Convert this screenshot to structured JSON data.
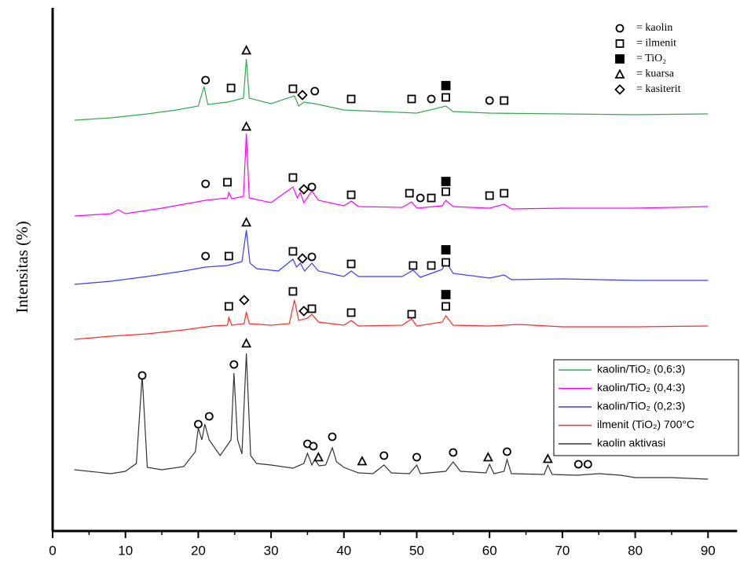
{
  "chart_data": {
    "type": "line",
    "y_label": "Intensitas (%)",
    "xlim": [
      0,
      94
    ],
    "xticks": [
      0,
      10,
      20,
      30,
      40,
      50,
      60,
      70,
      80,
      90
    ],
    "ylim": [
      0,
      666
    ],
    "series": [
      {
        "name": "kaolin/TiO₂ (0,6:3)",
        "color": "#33a852",
        "x": [
          3,
          8,
          13,
          17,
          20,
          20.8,
          21.3,
          24,
          26.2,
          26.6,
          27,
          30,
          33.2,
          33.8,
          34.5,
          36,
          40,
          45,
          50,
          54,
          55,
          60,
          70,
          80,
          90
        ],
        "values": [
          523,
          526,
          531,
          536,
          541,
          566,
          543,
          546,
          551,
          601,
          551,
          544,
          554,
          541,
          546,
          544,
          536,
          534,
          532,
          541,
          534,
          532,
          531,
          530,
          531
        ]
      },
      {
        "name": "kaolin/TiO₂ (0,4:3)",
        "color": "#ff00ff",
        "x": [
          3,
          8,
          9,
          10,
          15,
          18,
          21,
          24,
          24.2,
          24.6,
          26.2,
          26.6,
          27,
          30,
          33,
          33.6,
          34,
          34.5,
          35.6,
          36.5,
          40,
          41,
          42,
          48,
          49.3,
          50,
          53.5,
          54,
          55,
          60,
          62,
          63,
          70,
          80,
          90
        ],
        "values": [
          401,
          404,
          409,
          404,
          411,
          416,
          421,
          424,
          431,
          423,
          426,
          506,
          424,
          418,
          438,
          424,
          431,
          418,
          433,
          421,
          414,
          420,
          413,
          412,
          419,
          411,
          414,
          421,
          413,
          411,
          416,
          410,
          411,
          411,
          413
        ]
      },
      {
        "name": "kaolin/TiO₂ (0,2:3)",
        "color": "#3b3bff",
        "x": [
          3,
          8,
          13,
          18,
          21,
          24,
          26,
          26.6,
          27.1,
          28,
          31,
          33,
          33.5,
          34,
          34.6,
          35.6,
          36.5,
          40,
          41,
          42,
          48,
          49.5,
          50.5,
          52,
          53.5,
          54,
          55,
          60,
          62,
          63,
          70,
          80,
          90
        ],
        "values": [
          314,
          318,
          324,
          331,
          336,
          338,
          343,
          383,
          341,
          334,
          331,
          346,
          336,
          341,
          331,
          341,
          331,
          324,
          331,
          324,
          324,
          332,
          323,
          328,
          333,
          343,
          328,
          322,
          326,
          320,
          321,
          319,
          319
        ]
      },
      {
        "name": "ilmenit (TiO₂) 700°C",
        "color": "#ff2a2a",
        "x": [
          3,
          8,
          13,
          18,
          22,
          24,
          24.2,
          24.6,
          26.3,
          26.6,
          27,
          30,
          32.5,
          33.2,
          33.8,
          35,
          35.6,
          36.5,
          40,
          41,
          42,
          48,
          49.3,
          50,
          53.5,
          54,
          55,
          60,
          64,
          70,
          80,
          90
        ],
        "values": [
          244,
          248,
          251,
          256,
          261,
          262,
          272,
          262,
          264,
          279,
          264,
          262,
          264,
          294,
          268,
          271,
          276,
          266,
          262,
          268,
          261,
          262,
          270,
          261,
          266,
          274,
          262,
          261,
          263,
          260,
          260,
          261
        ]
      },
      {
        "name": "kaolin aktivasi",
        "color": "#333333",
        "x": [
          3,
          8,
          10,
          11.5,
          12.3,
          13,
          15,
          18,
          19.6,
          20,
          20.5,
          20.9,
          21.5,
          23,
          24.5,
          24.9,
          25.4,
          26,
          26.6,
          27.2,
          28,
          30,
          33,
          34.5,
          35,
          35.6,
          36,
          36.6,
          37.5,
          38.4,
          39,
          40,
          42,
          44,
          45.5,
          46.5,
          49,
          50,
          50.5,
          54,
          55,
          56,
          59.5,
          60,
          60.6,
          62,
          62.4,
          63,
          67.5,
          68,
          68.6,
          72,
          75,
          78,
          80,
          85,
          90
        ],
        "values": [
          78,
          73,
          76,
          86,
          198,
          81,
          78,
          82,
          101,
          131,
          116,
          136,
          116,
          96,
          116,
          201,
          116,
          98,
          226,
          96,
          86,
          84,
          80,
          86,
          99,
          84,
          91,
          83,
          84,
          106,
          88,
          81,
          74,
          73,
          84,
          74,
          73,
          84,
          73,
          76,
          88,
          76,
          74,
          85,
          73,
          76,
          91,
          73,
          72,
          84,
          72,
          71,
          73,
          71,
          68,
          68,
          66
        ]
      }
    ],
    "phase_legend": [
      {
        "symbol": "circle",
        "label": "= kaolin"
      },
      {
        "symbol": "square",
        "label": "= ilmenit"
      },
      {
        "symbol": "filled-square",
        "label": "= TiO₂"
      },
      {
        "symbol": "triangle",
        "label": "= kuarsa"
      },
      {
        "symbol": "diamond",
        "label": "= kasiterit"
      }
    ],
    "markers": [
      [
        "circle",
        21,
        574
      ],
      [
        "square",
        24.5,
        564
      ],
      [
        "triangle",
        26.6,
        612
      ],
      [
        "square",
        33,
        563
      ],
      [
        "diamond",
        34.3,
        555
      ],
      [
        "circle",
        36,
        560
      ],
      [
        "square",
        41,
        550
      ],
      [
        "square",
        49.3,
        550
      ],
      [
        "circle",
        52,
        550
      ],
      [
        "square",
        54,
        552
      ],
      [
        "filled-square",
        54,
        567
      ],
      [
        "circle",
        60,
        548
      ],
      [
        "square",
        62,
        548
      ],
      [
        "circle",
        21,
        442
      ],
      [
        "square",
        24,
        444
      ],
      [
        "triangle",
        26.6,
        515
      ],
      [
        "square",
        33,
        450
      ],
      [
        "diamond",
        34.5,
        435
      ],
      [
        "circle",
        35.6,
        438
      ],
      [
        "square",
        41,
        428
      ],
      [
        "square",
        49,
        430
      ],
      [
        "circle",
        50.5,
        424
      ],
      [
        "square",
        52,
        424
      ],
      [
        "square",
        54,
        432
      ],
      [
        "filled-square",
        54,
        445
      ],
      [
        "square",
        60,
        427
      ],
      [
        "square",
        62,
        430
      ],
      [
        "circle",
        21,
        350
      ],
      [
        "square",
        24.2,
        350
      ],
      [
        "triangle",
        26.6,
        393
      ],
      [
        "square",
        33,
        356
      ],
      [
        "diamond",
        34.3,
        347
      ],
      [
        "circle",
        35.6,
        349
      ],
      [
        "square",
        41,
        340
      ],
      [
        "square",
        49.5,
        338
      ],
      [
        "square",
        52,
        338
      ],
      [
        "square",
        54,
        342
      ],
      [
        "filled-square",
        54,
        358
      ],
      [
        "square",
        24.2,
        286
      ],
      [
        "diamond",
        26.3,
        294
      ],
      [
        "square",
        33,
        305
      ],
      [
        "diamond",
        34.5,
        280
      ],
      [
        "square",
        35.6,
        283
      ],
      [
        "square",
        41,
        278
      ],
      [
        "square",
        49.3,
        276
      ],
      [
        "square",
        54,
        286
      ],
      [
        "filled-square",
        54,
        301
      ],
      [
        "circle",
        12.3,
        198
      ],
      [
        "circle",
        20,
        136
      ],
      [
        "circle",
        21.5,
        146
      ],
      [
        "circle",
        24.9,
        212
      ],
      [
        "triangle",
        26.6,
        239
      ],
      [
        "circle",
        35,
        111
      ],
      [
        "circle",
        35.8,
        108
      ],
      [
        "triangle",
        36.5,
        94
      ],
      [
        "circle",
        38.4,
        120
      ],
      [
        "triangle",
        42.5,
        89
      ],
      [
        "circle",
        45.5,
        96
      ],
      [
        "circle",
        50,
        94
      ],
      [
        "circle",
        55,
        100
      ],
      [
        "triangle",
        59.8,
        94
      ],
      [
        "circle",
        62.4,
        101
      ],
      [
        "triangle",
        68,
        92
      ],
      [
        "circle",
        72.2,
        85
      ],
      [
        "circle",
        73.5,
        85
      ]
    ]
  }
}
